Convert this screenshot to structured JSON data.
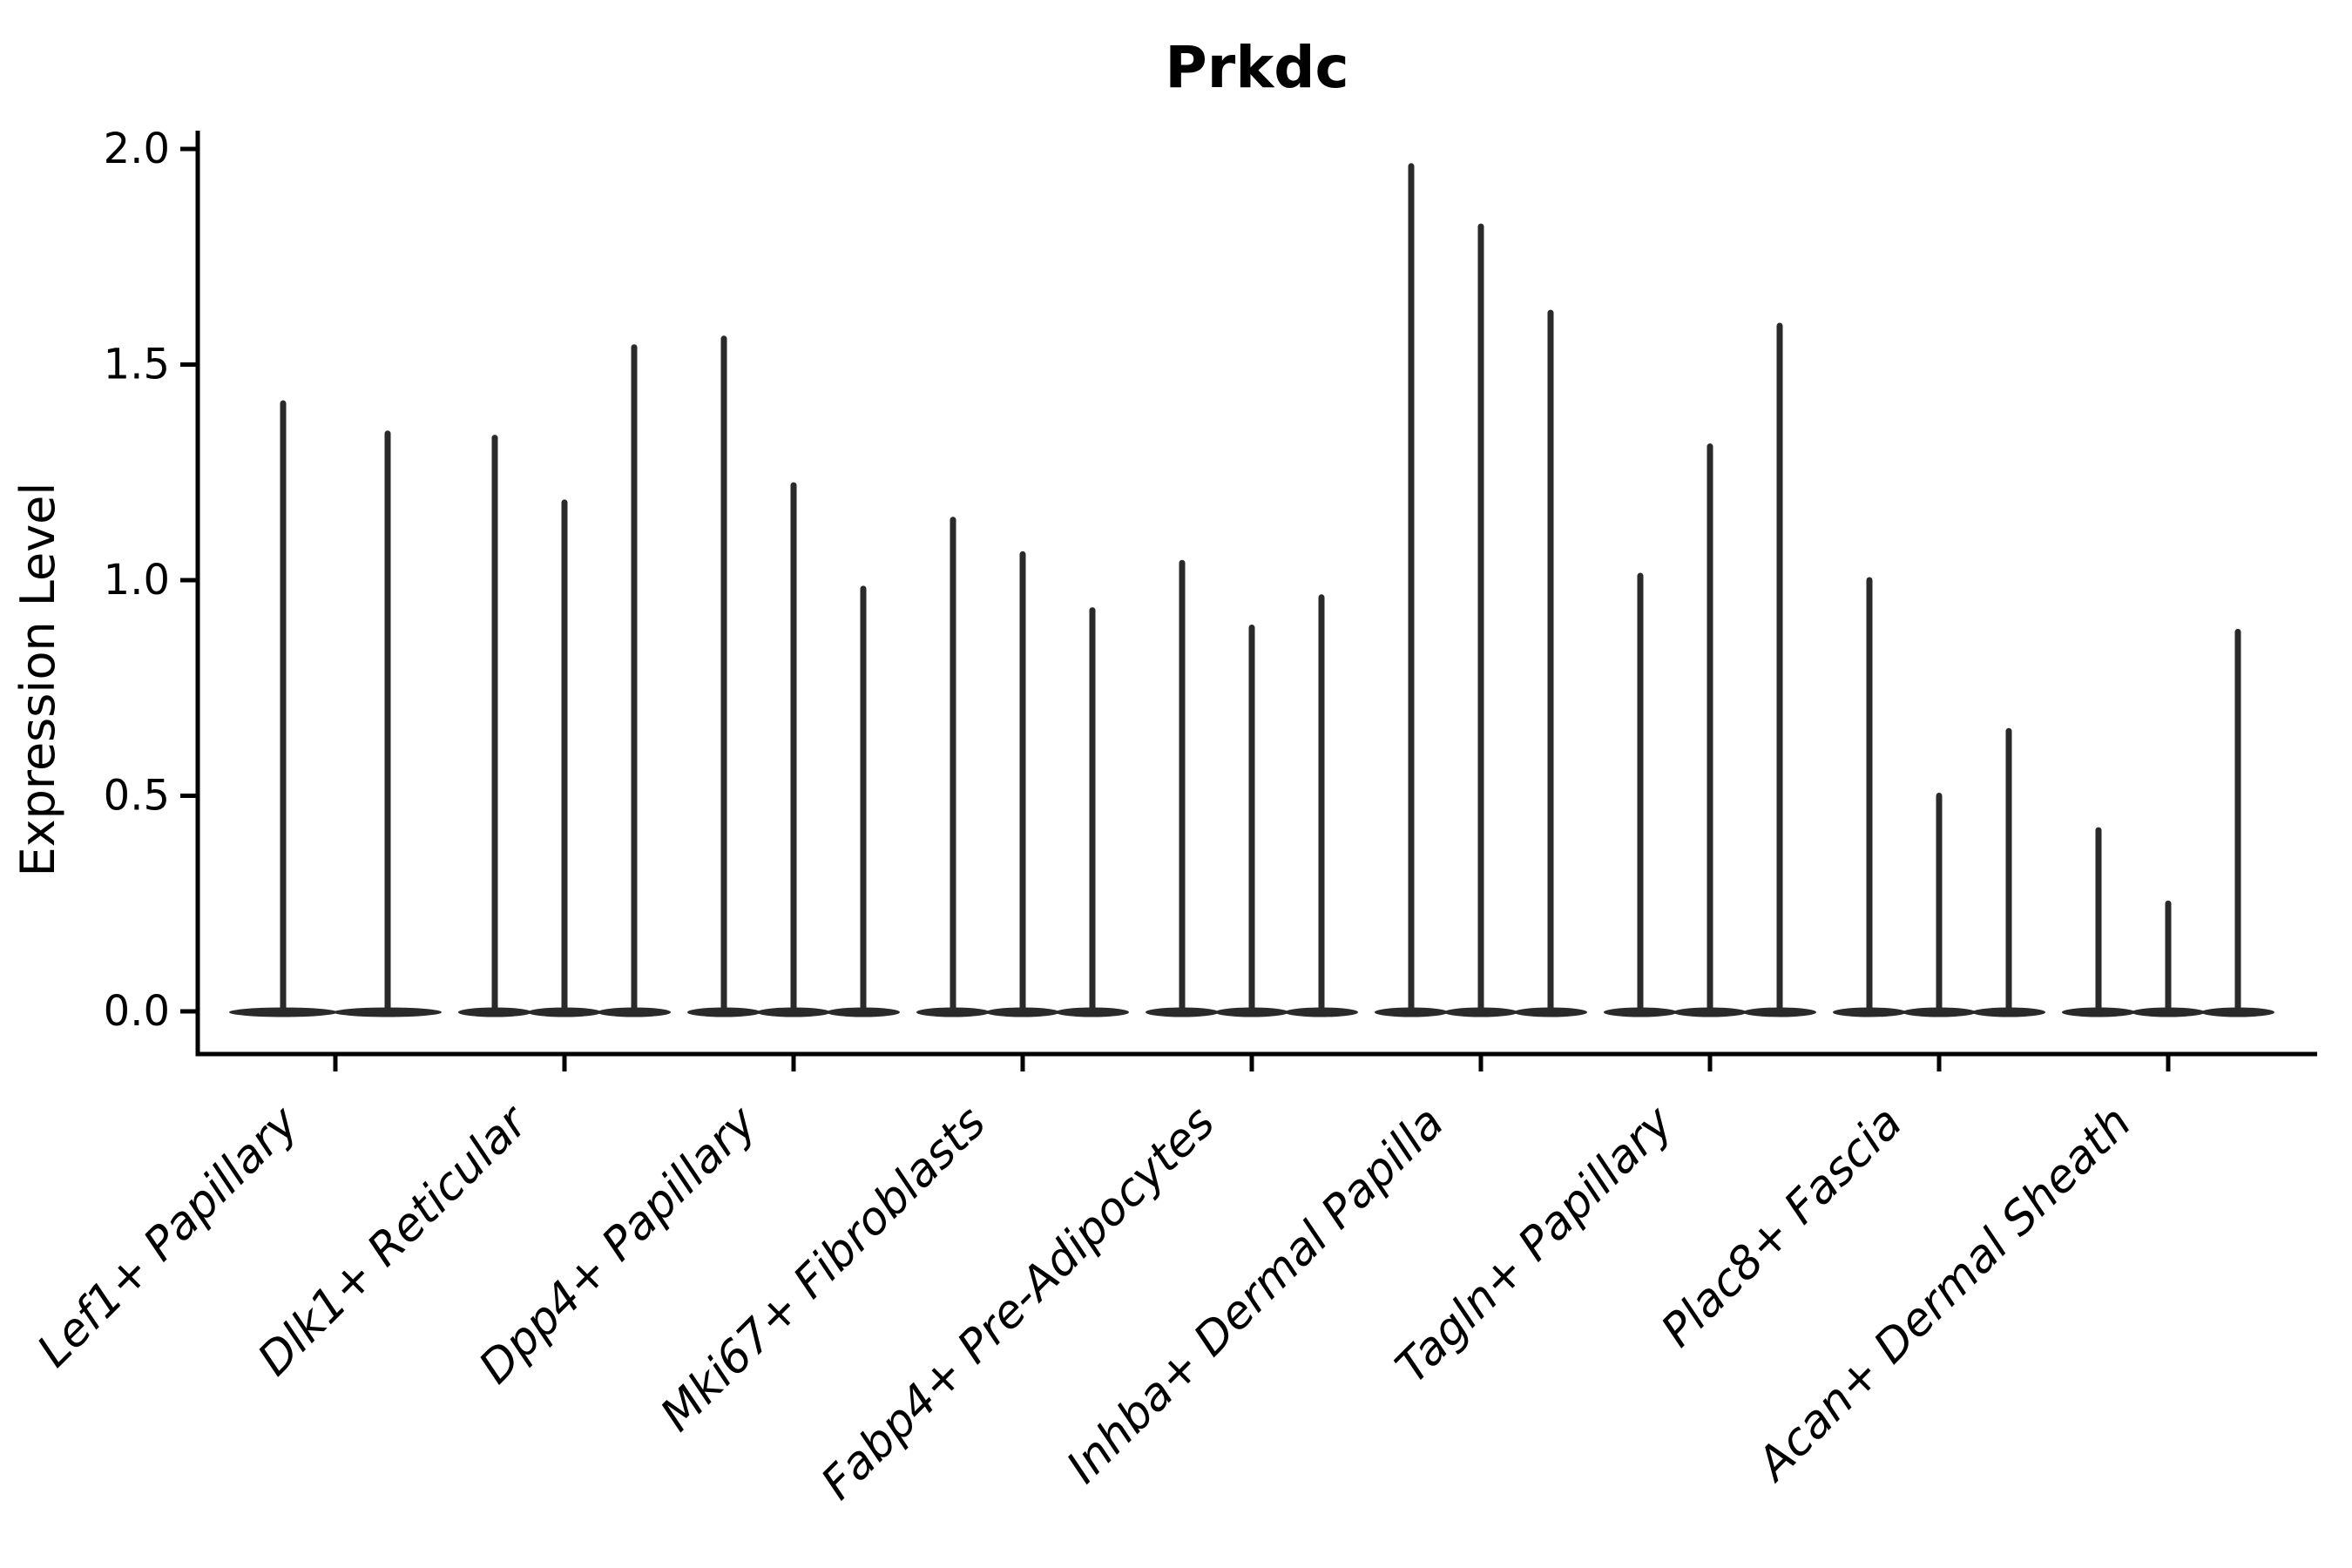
{
  "page": {
    "background": "#ffffff"
  },
  "chart_data": {
    "type": "violin",
    "title": "Prkdc",
    "xlabel": "",
    "ylabel": "Expression Level",
    "ylim": [
      0,
      2.05
    ],
    "yticks": [
      0.0,
      0.5,
      1.0,
      1.5,
      2.0
    ],
    "ytick_labels": [
      "0.0",
      "0.5",
      "1.0",
      "1.5",
      "2.0"
    ],
    "grid": false,
    "legend_position": "none",
    "x_tick_label_style": "italic, rotated 45deg",
    "categories": [
      "Lef1+ Papillary",
      "Dlk1+ Reticular",
      "Dpp4+ Papillary",
      "Mki67+ Fibroblasts",
      "Fabp4+ Pre-Adipocytes",
      "Inhba+ Dermal Papilla",
      "Tagln+ Papillary",
      "Plac8+ Fascia",
      "Acan+ Dermal Sheath"
    ],
    "groups": [
      {
        "category": "Lef1+ Papillary",
        "violin_maxima": [
          1.41,
          1.34
        ]
      },
      {
        "category": "Dlk1+ Reticular",
        "violin_maxima": [
          1.33,
          1.18,
          1.54
        ]
      },
      {
        "category": "Dpp4+ Papillary",
        "violin_maxima": [
          1.56,
          1.22,
          0.98
        ]
      },
      {
        "category": "Mki67+ Fibroblasts",
        "violin_maxima": [
          1.14,
          1.06,
          0.93
        ]
      },
      {
        "category": "Fabp4+ Pre-Adipocytes",
        "violin_maxima": [
          1.04,
          0.89,
          0.96
        ]
      },
      {
        "category": "Inhba+ Dermal Papilla",
        "violin_maxima": [
          1.96,
          1.82,
          1.62
        ]
      },
      {
        "category": "Tagln+ Papillary",
        "violin_maxima": [
          1.01,
          1.31,
          1.59
        ]
      },
      {
        "category": "Plac8+ Fascia",
        "violin_maxima": [
          1.0,
          0.5,
          0.65
        ]
      },
      {
        "category": "Acan+ Dermal Sheath",
        "violin_maxima": [
          0.42,
          0.25,
          0.88
        ]
      }
    ],
    "violin_shape_note": "extremely narrow violins: nearly all density at 0 (wide flat base), thin spike up to maximum expression",
    "colors": {
      "violin": "#2a2a2a",
      "axis": "#000000",
      "text": "#000000",
      "background": "#ffffff"
    }
  }
}
